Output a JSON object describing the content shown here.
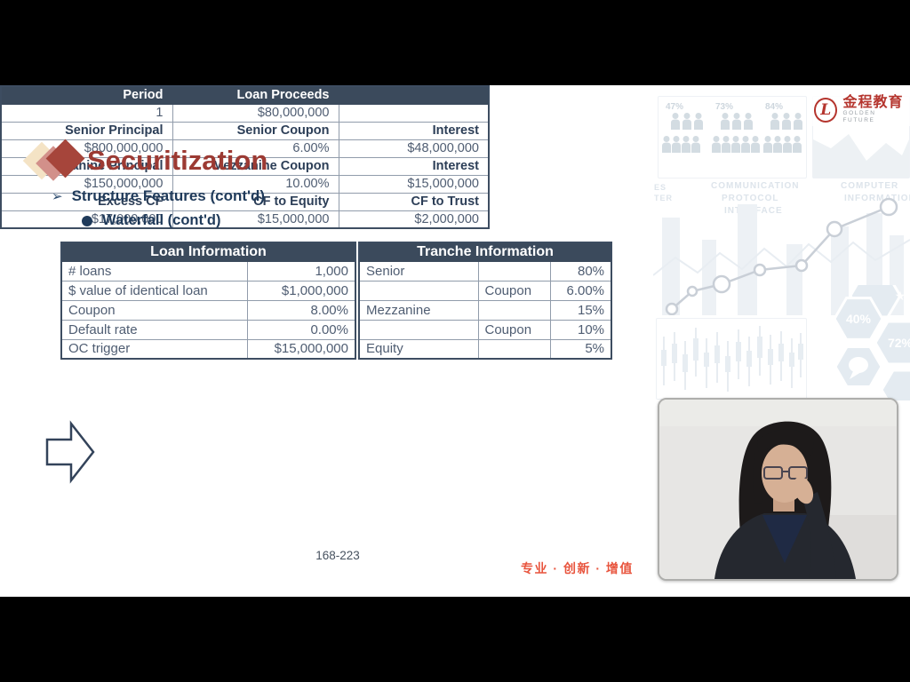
{
  "slide": {
    "title": "Securitization",
    "bullet1": "Structure Features (cont'd)",
    "bullet2": "Waterfall (cont'd)",
    "page_number": "168-223",
    "slogan": "专业 · 创新 · 增值"
  },
  "logo": {
    "emblem_glyph": "L",
    "brand_cn": "金程教育",
    "brand_en": "GOLDEN FUTURE"
  },
  "loan_table": {
    "title": "Loan Information",
    "rows": [
      {
        "label": "# loans",
        "value": "1,000"
      },
      {
        "label": "$ value of identical loan",
        "value": "$1,000,000"
      },
      {
        "label": "Coupon",
        "value": "8.00%"
      },
      {
        "label": "Default rate",
        "value": "0.00%"
      },
      {
        "label": "OC trigger",
        "value": "$15,000,000"
      }
    ]
  },
  "tranche_table": {
    "title": "Tranche Information",
    "rows": [
      {
        "c1": "Senior",
        "c2": "",
        "c3": "80%"
      },
      {
        "c1": "",
        "c2": "Coupon",
        "c3": "6.00%"
      },
      {
        "c1": "Mezzanine",
        "c2": "",
        "c3": "15%"
      },
      {
        "c1": "",
        "c2": "Coupon",
        "c3": "10%"
      },
      {
        "c1": "Equity",
        "c2": "",
        "c3": "5%"
      }
    ]
  },
  "waterfall_table": {
    "header": {
      "c1": "Period",
      "c2": "Loan Proceeds",
      "c3": ""
    },
    "rows": [
      {
        "c1": "1",
        "c2": "$80,000,000",
        "c3": "",
        "bold": false
      },
      {
        "c1": "Senior Principal",
        "c2": "Senior Coupon",
        "c3": "Interest",
        "bold": true
      },
      {
        "c1": "$800,000,000",
        "c2": "6.00%",
        "c3": "$48,000,000",
        "bold": false
      },
      {
        "c1": "Mezzanine Principal",
        "c2": "Mezzanine Coupon",
        "c3": "Interest",
        "bold": true
      },
      {
        "c1": "$150,000,000",
        "c2": "10.00%",
        "c3": "$15,000,000",
        "bold": false
      },
      {
        "c1": "Excess CF",
        "c2": "CF to Equity",
        "c3": "CF to Trust",
        "bold": true
      },
      {
        "c1": "$17,000,000",
        "c2": "$15,000,000",
        "c3": "$2,000,000",
        "bold": false
      }
    ]
  },
  "decor": {
    "percents": [
      "47%",
      "73%",
      "84%"
    ],
    "word_left_1": "ES",
    "word_left_2": "TER",
    "words_mid": [
      "COMMUNICATION",
      "PROTOCOL",
      "INTERFACE"
    ],
    "words_right": [
      "COMPUTER",
      "INFORMATION"
    ],
    "hex_label_1": "40%",
    "hex_label_2": "72%"
  },
  "colors": {
    "accent_red": "#9c3a33",
    "navy": "#1f3a5a",
    "table_header": "#3b4a5c",
    "slogan_red": "#e8543d",
    "logo_red": "#b5352e"
  }
}
